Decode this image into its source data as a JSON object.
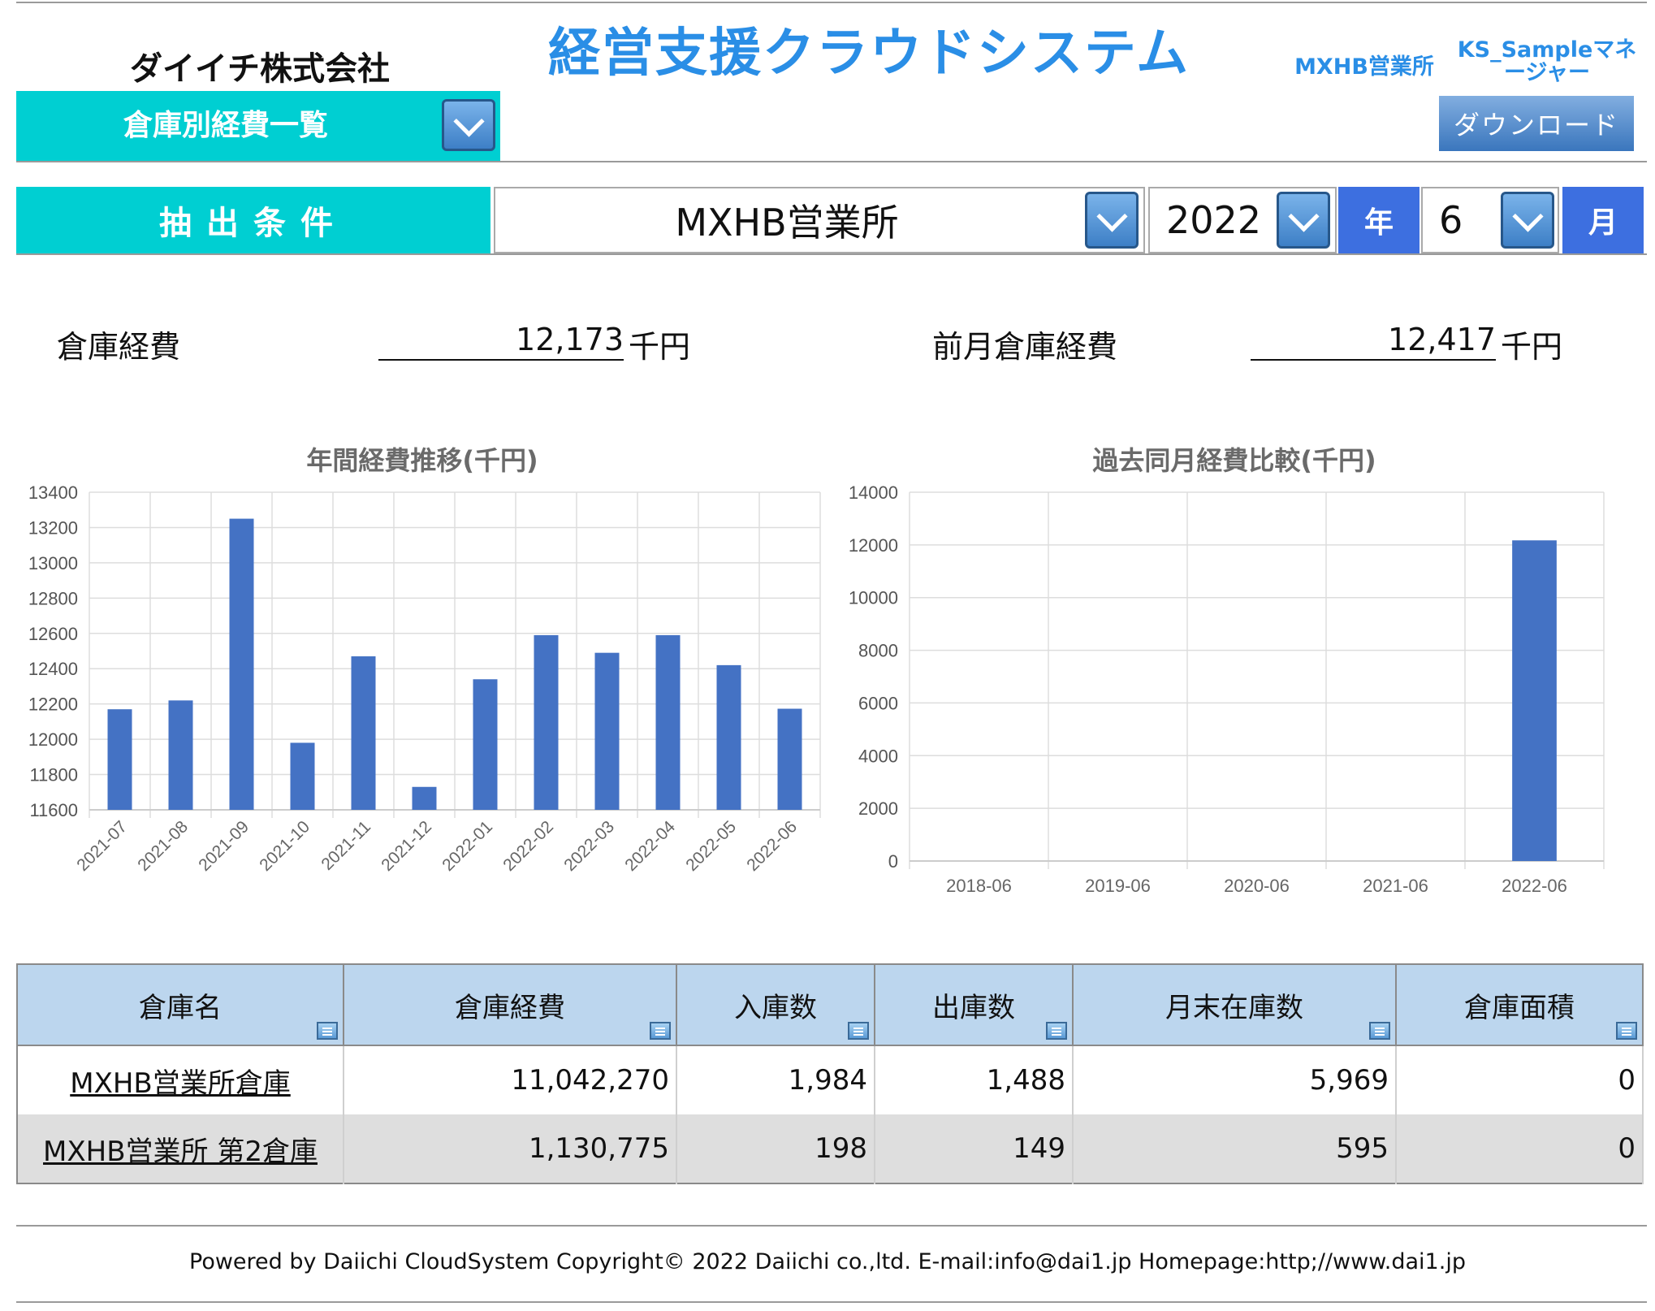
{
  "header": {
    "company": "ダイイチ株式会社",
    "app_title": "経営支援クラウドシステム",
    "office": "MXHB営業所",
    "user": "KS_Sampleマネージャー",
    "page_selector": "倉庫別経費一覧",
    "download_label": "ダウンロード"
  },
  "filter": {
    "label": "抽出条件",
    "office": "MXHB営業所",
    "year": "2022",
    "year_unit": "年",
    "month": "6",
    "month_unit": "月"
  },
  "summary": {
    "current_label": "倉庫経費",
    "current_value": "12,173",
    "current_unit": "千円",
    "prev_label": "前月倉庫経費",
    "prev_value": "12,417",
    "prev_unit": "千円"
  },
  "chart_data": [
    {
      "type": "bar",
      "title": "年間経費推移(千円)",
      "categories": [
        "2021-07",
        "2021-08",
        "2021-09",
        "2021-10",
        "2021-11",
        "2021-12",
        "2022-01",
        "2022-02",
        "2022-03",
        "2022-04",
        "2022-05",
        "2022-06"
      ],
      "values": [
        12170,
        12220,
        13250,
        11980,
        12470,
        11730,
        12340,
        12590,
        12490,
        12590,
        12420,
        12173
      ],
      "ylim": [
        11600,
        13400
      ],
      "yticks": [
        11600,
        11800,
        12000,
        12200,
        12400,
        12600,
        12800,
        13000,
        13200,
        13400
      ],
      "grid": true,
      "color": "#4472c4"
    },
    {
      "type": "bar",
      "title": "過去同月経費比較(千円)",
      "categories": [
        "2018-06",
        "2019-06",
        "2020-06",
        "2021-06",
        "2022-06"
      ],
      "values": [
        0,
        0,
        0,
        0,
        12173
      ],
      "ylim": [
        0,
        14000
      ],
      "yticks": [
        0,
        2000,
        4000,
        6000,
        8000,
        10000,
        12000,
        14000
      ],
      "grid": true,
      "color": "#4472c4"
    }
  ],
  "table": {
    "columns": [
      "倉庫名",
      "倉庫経費",
      "入庫数",
      "出庫数",
      "月末在庫数",
      "倉庫面積"
    ],
    "rows": [
      {
        "name": "MXHB営業所倉庫",
        "expense": "11,042,270",
        "in": "1,984",
        "out": "1,488",
        "stock": "5,969",
        "area": "0"
      },
      {
        "name": "MXHB営業所 第2倉庫",
        "expense": "1,130,775",
        "in": "198",
        "out": "149",
        "stock": "595",
        "area": "0"
      }
    ]
  },
  "footer": "Powered by Daiichi CloudSystem Copyright© 2022 Daiichi co.,ltd. E-mail:info@dai1.jp Homepage:http;//www.dai1.jp"
}
